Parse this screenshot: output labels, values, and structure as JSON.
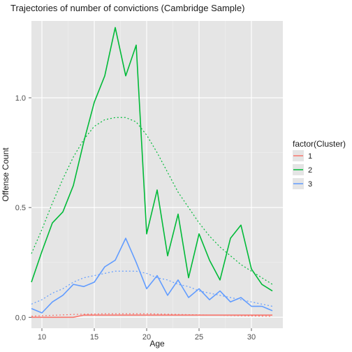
{
  "chart": {
    "type": "line",
    "title": "Trajectories of number of convictions (Cambridge Sample)",
    "xlabel": "Age",
    "ylabel": "Offense Count",
    "legend_title": "factor(Cluster)",
    "panel_bg": "#e5e5e5",
    "page_bg": "#ffffff",
    "grid_major_color": "#ffffff",
    "grid_minor_color": "#f0f0f0",
    "x": {
      "min": 9,
      "max": 33,
      "ticks": [
        10,
        15,
        20,
        25,
        30
      ],
      "tick_labels": [
        "10",
        "15",
        "20",
        "25",
        "30"
      ]
    },
    "y": {
      "min": -0.05,
      "max": 1.35,
      "ticks": [
        0.0,
        0.5,
        1.0
      ],
      "tick_labels": [
        "0.0",
        "0.5",
        "1.0"
      ]
    },
    "line_width_solid": 1.6,
    "line_width_dotted": 1.2,
    "dotted_dasharray": "2,3",
    "series": [
      {
        "key": "1",
        "color": "#f8766d",
        "solid": [
          [
            9,
            0.0
          ],
          [
            10,
            0.0
          ],
          [
            11,
            0.0
          ],
          [
            12,
            0.0
          ],
          [
            13,
            0.0
          ],
          [
            14,
            0.01
          ],
          [
            15,
            0.01
          ],
          [
            16,
            0.01
          ],
          [
            17,
            0.01
          ],
          [
            18,
            0.01
          ],
          [
            19,
            0.01
          ],
          [
            20,
            0.01
          ],
          [
            21,
            0.01
          ],
          [
            22,
            0.01
          ],
          [
            23,
            0.01
          ],
          [
            24,
            0.01
          ],
          [
            25,
            0.01
          ],
          [
            26,
            0.01
          ],
          [
            27,
            0.01
          ],
          [
            28,
            0.01
          ],
          [
            29,
            0.01
          ],
          [
            30,
            0.01
          ],
          [
            31,
            0.01
          ],
          [
            32,
            0.01
          ]
        ],
        "dotted": [
          [
            9,
            0.005
          ],
          [
            10,
            0.007
          ],
          [
            11,
            0.009
          ],
          [
            12,
            0.011
          ],
          [
            13,
            0.013
          ],
          [
            14,
            0.014
          ],
          [
            15,
            0.015
          ],
          [
            16,
            0.016
          ],
          [
            17,
            0.016
          ],
          [
            18,
            0.016
          ],
          [
            19,
            0.016
          ],
          [
            20,
            0.016
          ],
          [
            21,
            0.015
          ],
          [
            22,
            0.014
          ],
          [
            23,
            0.013
          ],
          [
            24,
            0.012
          ],
          [
            25,
            0.011
          ],
          [
            26,
            0.01
          ],
          [
            27,
            0.009
          ],
          [
            28,
            0.008
          ],
          [
            29,
            0.007
          ],
          [
            30,
            0.006
          ],
          [
            31,
            0.005
          ],
          [
            32,
            0.004
          ]
        ]
      },
      {
        "key": "2",
        "color": "#00ba38",
        "solid": [
          [
            9,
            0.16
          ],
          [
            10,
            0.3
          ],
          [
            11,
            0.43
          ],
          [
            12,
            0.48
          ],
          [
            13,
            0.6
          ],
          [
            14,
            0.8
          ],
          [
            15,
            0.98
          ],
          [
            16,
            1.1
          ],
          [
            17,
            1.32
          ],
          [
            18,
            1.1
          ],
          [
            19,
            1.24
          ],
          [
            20,
            0.38
          ],
          [
            21,
            0.58
          ],
          [
            22,
            0.28
          ],
          [
            23,
            0.47
          ],
          [
            24,
            0.18
          ],
          [
            25,
            0.38
          ],
          [
            26,
            0.26
          ],
          [
            27,
            0.17
          ],
          [
            28,
            0.36
          ],
          [
            29,
            0.42
          ],
          [
            30,
            0.22
          ],
          [
            31,
            0.15
          ],
          [
            32,
            0.12
          ]
        ],
        "dotted": [
          [
            9,
            0.29
          ],
          [
            10,
            0.4
          ],
          [
            11,
            0.52
          ],
          [
            12,
            0.63
          ],
          [
            13,
            0.73
          ],
          [
            14,
            0.81
          ],
          [
            15,
            0.87
          ],
          [
            16,
            0.9
          ],
          [
            17,
            0.91
          ],
          [
            18,
            0.91
          ],
          [
            19,
            0.89
          ],
          [
            20,
            0.83
          ],
          [
            21,
            0.75
          ],
          [
            22,
            0.66
          ],
          [
            23,
            0.57
          ],
          [
            24,
            0.5
          ],
          [
            25,
            0.43
          ],
          [
            26,
            0.37
          ],
          [
            27,
            0.32
          ],
          [
            28,
            0.28
          ],
          [
            29,
            0.24
          ],
          [
            30,
            0.21
          ],
          [
            31,
            0.18
          ],
          [
            32,
            0.15
          ]
        ]
      },
      {
        "key": "3",
        "color": "#619cff",
        "solid": [
          [
            9,
            0.04
          ],
          [
            10,
            0.02
          ],
          [
            11,
            0.07
          ],
          [
            12,
            0.1
          ],
          [
            13,
            0.15
          ],
          [
            14,
            0.14
          ],
          [
            15,
            0.16
          ],
          [
            16,
            0.23
          ],
          [
            17,
            0.26
          ],
          [
            18,
            0.36
          ],
          [
            19,
            0.25
          ],
          [
            20,
            0.13
          ],
          [
            21,
            0.19
          ],
          [
            22,
            0.1
          ],
          [
            23,
            0.17
          ],
          [
            24,
            0.09
          ],
          [
            25,
            0.13
          ],
          [
            26,
            0.08
          ],
          [
            27,
            0.12
          ],
          [
            28,
            0.07
          ],
          [
            29,
            0.09
          ],
          [
            30,
            0.05
          ],
          [
            31,
            0.05
          ],
          [
            32,
            0.03
          ]
        ],
        "dotted": [
          [
            9,
            0.06
          ],
          [
            10,
            0.08
          ],
          [
            11,
            0.11
          ],
          [
            12,
            0.13
          ],
          [
            13,
            0.16
          ],
          [
            14,
            0.18
          ],
          [
            15,
            0.19
          ],
          [
            16,
            0.2
          ],
          [
            17,
            0.21
          ],
          [
            18,
            0.21
          ],
          [
            19,
            0.21
          ],
          [
            20,
            0.2
          ],
          [
            21,
            0.18
          ],
          [
            22,
            0.17
          ],
          [
            23,
            0.15
          ],
          [
            24,
            0.14
          ],
          [
            25,
            0.12
          ],
          [
            26,
            0.11
          ],
          [
            27,
            0.1
          ],
          [
            28,
            0.09
          ],
          [
            29,
            0.08
          ],
          [
            30,
            0.07
          ],
          [
            31,
            0.06
          ],
          [
            32,
            0.05
          ]
        ]
      }
    ]
  }
}
